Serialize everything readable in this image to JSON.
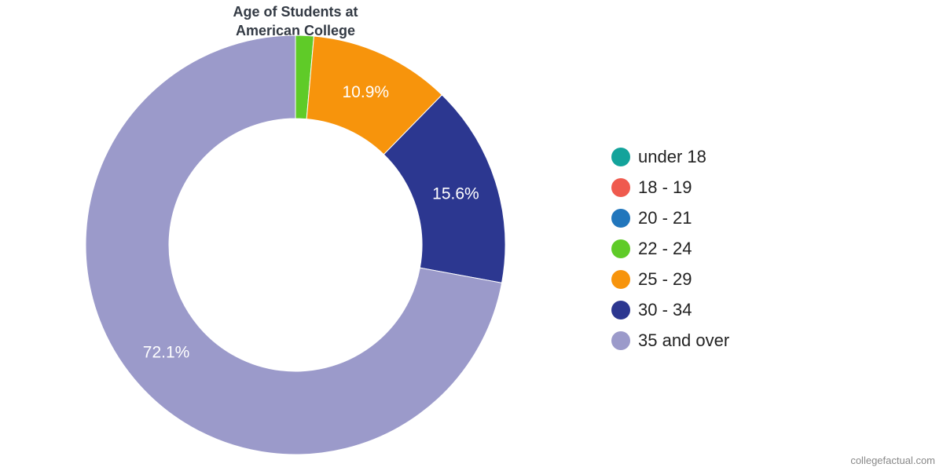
{
  "chart_data": {
    "type": "pie",
    "variant": "donut",
    "title": [
      "Age of Students at",
      "American College"
    ],
    "categories": [
      "under 18",
      "18 - 19",
      "20 - 21",
      "22 - 24",
      "25 - 29",
      "30 - 34",
      "35 and over"
    ],
    "values": [
      0.0,
      0.0,
      0.0,
      1.4,
      10.9,
      15.6,
      72.1
    ],
    "data_labels": [
      "",
      "",
      "",
      "",
      "10.9%",
      "15.6%",
      "72.1%"
    ],
    "colors": [
      "#13a39b",
      "#ef5a4e",
      "#2176bc",
      "#5fcb28",
      "#f7940c",
      "#2c3790",
      "#9b9aca"
    ],
    "legend_position": "right"
  },
  "footer": {
    "credit": "collegefactual.com"
  }
}
